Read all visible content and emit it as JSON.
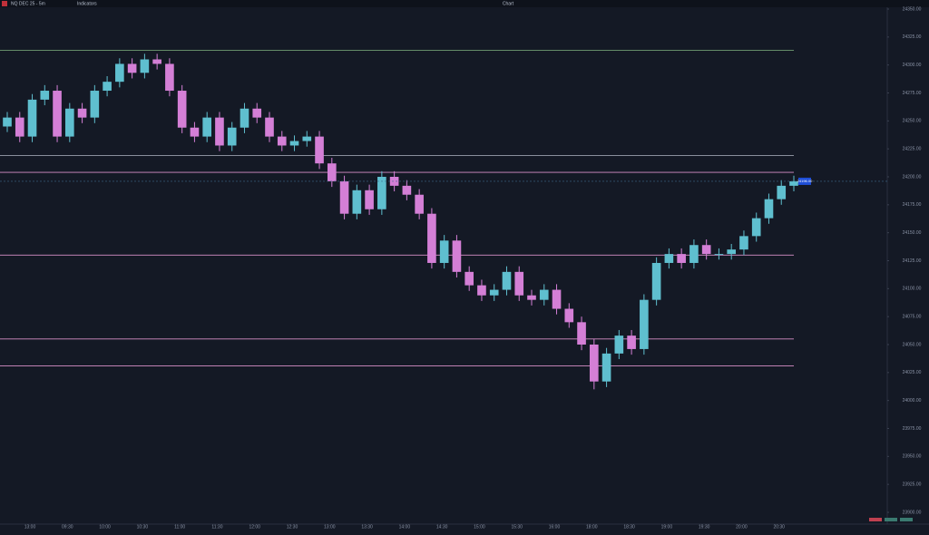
{
  "header": {
    "symbol": "NQ DEC 25 - 5m",
    "indicators": "Indicators",
    "window_title": "Chart"
  },
  "chart_data": {
    "type": "candlestick",
    "open": [
      24245,
      24253,
      24236,
      24269,
      24277,
      24236,
      24261,
      24253,
      24277,
      24285,
      24301,
      24293,
      24305,
      24301,
      24277,
      24244,
      24236,
      24253,
      24228,
      24244,
      24261,
      24253,
      24236,
      24228,
      24232,
      24236,
      24212,
      24196,
      24167,
      24188,
      24171,
      24200,
      24192,
      24184,
      24167,
      24123,
      24143,
      24115,
      24103,
      24094,
      24099,
      24115,
      24094,
      24090,
      24099,
      24082,
      24070,
      24050,
      24017,
      24042,
      24058,
      24046,
      24090,
      24123,
      24131,
      24123,
      24139,
      24131,
      24131,
      24135,
      24147,
      24163,
      24180,
      24192
    ],
    "high": [
      24258,
      24258,
      24274,
      24282,
      24282,
      24266,
      24266,
      24282,
      24290,
      24306,
      24306,
      24310,
      24310,
      24306,
      24282,
      24249,
      24258,
      24258,
      24249,
      24266,
      24266,
      24258,
      24241,
      24237,
      24241,
      24241,
      24217,
      24201,
      24193,
      24193,
      24205,
      24205,
      24197,
      24189,
      24172,
      24148,
      24148,
      24120,
      24108,
      24104,
      24120,
      24120,
      24099,
      24104,
      24104,
      24087,
      24075,
      24055,
      24047,
      24063,
      24063,
      24095,
      24128,
      24136,
      24136,
      24144,
      24144,
      24136,
      24140,
      24152,
      24168,
      24185,
      24197,
      24201
    ],
    "low": [
      24240,
      24231,
      24231,
      24264,
      24231,
      24231,
      24248,
      24248,
      24272,
      24280,
      24288,
      24288,
      24296,
      24272,
      24239,
      24231,
      24231,
      24223,
      24223,
      24239,
      24248,
      24231,
      24223,
      24223,
      24227,
      24207,
      24191,
      24162,
      24162,
      24166,
      24166,
      24187,
      24179,
      24162,
      24118,
      24118,
      24110,
      24098,
      24089,
      24089,
      24094,
      24089,
      24085,
      24085,
      24077,
      24065,
      24045,
      24010,
      24012,
      24037,
      24041,
      24041,
      24085,
      24118,
      24118,
      24118,
      24126,
      24126,
      24126,
      24130,
      24142,
      24158,
      24175,
      24187
    ],
    "close": [
      24253,
      24236,
      24269,
      24277,
      24236,
      24261,
      24253,
      24277,
      24285,
      24301,
      24293,
      24305,
      24301,
      24277,
      24244,
      24236,
      24253,
      24228,
      24244,
      24261,
      24253,
      24236,
      24228,
      24232,
      24236,
      24212,
      24196,
      24167,
      24188,
      24171,
      24200,
      24192,
      24184,
      24167,
      24123,
      24143,
      24115,
      24103,
      24094,
      24099,
      24115,
      24094,
      24090,
      24099,
      24082,
      24070,
      24050,
      24017,
      24042,
      24058,
      24046,
      24090,
      24123,
      24131,
      24123,
      24139,
      24131,
      24131,
      24135,
      24147,
      24163,
      24180,
      24192,
      24196
    ],
    "up_color": "#5fbfcf",
    "down_color": "#d47fd6",
    "levels": [
      {
        "value": 24313,
        "color": "#7fb37f"
      },
      {
        "value": 24219,
        "color": "#9aa0ad"
      },
      {
        "value": 24204,
        "color": "#d890c8"
      },
      {
        "value": 24130,
        "color": "#d890c8"
      },
      {
        "value": 24055,
        "color": "#d890c8"
      },
      {
        "value": 24031,
        "color": "#d890c8"
      }
    ],
    "last_price": {
      "value": 24196,
      "label": "24196.00"
    },
    "ylim": [
      23900,
      24350
    ],
    "yticks": [
      {
        "value": 23900,
        "label": "23900.00"
      },
      {
        "value": 23925,
        "label": "23925.00"
      },
      {
        "value": 23950,
        "label": "23950.00"
      },
      {
        "value": 23975,
        "label": "23975.00"
      },
      {
        "value": 24000,
        "label": "24000.00"
      },
      {
        "value": 24025,
        "label": "24025.00"
      },
      {
        "value": 24050,
        "label": "24050.00"
      },
      {
        "value": 24075,
        "label": "24075.00"
      },
      {
        "value": 24100,
        "label": "24100.00"
      },
      {
        "value": 24125,
        "label": "24125.00"
      },
      {
        "value": 24150,
        "label": "24150.00"
      },
      {
        "value": 24175,
        "label": "24175.00"
      },
      {
        "value": 24200,
        "label": "24200.00"
      },
      {
        "value": 24225,
        "label": "24225.00"
      },
      {
        "value": 24250,
        "label": "24250.00"
      },
      {
        "value": 24275,
        "label": "24275.00"
      },
      {
        "value": 24300,
        "label": "24300.00"
      },
      {
        "value": 24325,
        "label": "24325.00"
      },
      {
        "value": 24350,
        "label": "24350.00"
      }
    ],
    "time_labels": [
      "13:00",
      "09:30",
      "10:00",
      "10:30",
      "11:00",
      "11:30",
      "12:00",
      "12:30",
      "13:00",
      "13:30",
      "14:00",
      "14:30",
      "15:00",
      "15:30",
      "16:00",
      "18:00",
      "18:30",
      "19:00",
      "19:30",
      "20:00",
      "20:30"
    ]
  }
}
